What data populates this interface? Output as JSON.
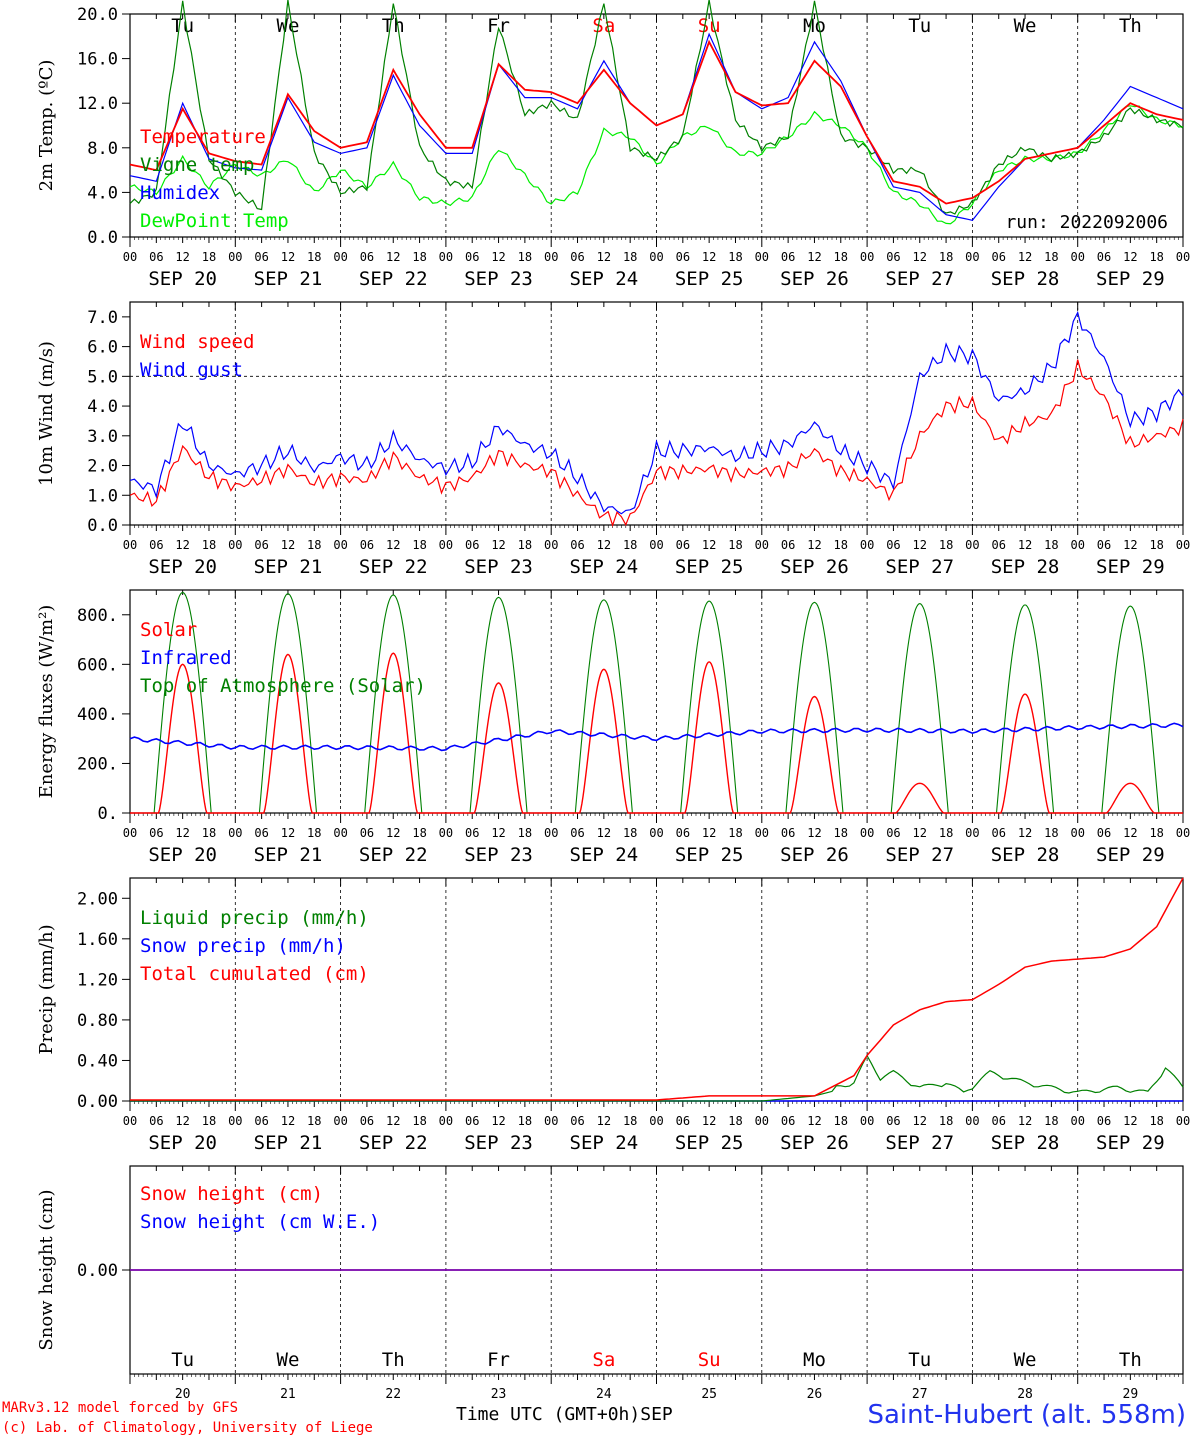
{
  "footer": {
    "credit_line1": "MARv3.12 model forced by GFS",
    "credit_line2": "(c) Lab. of Climatology, University of Liege",
    "time_axis_label": "Time UTC (GMT+0h)",
    "month": "SEP",
    "station": "Saint-Hubert (alt. 558m)"
  },
  "colors": {
    "red": "#ff0000",
    "blue": "#0000ff",
    "green": "#008000",
    "light_green": "#00ee00",
    "purple": "#7700aa"
  },
  "x_axis": {
    "hour_ticks": [
      "00",
      "06",
      "12",
      "18"
    ],
    "end_tick": "00",
    "dates": [
      "SEP 20",
      "SEP 21",
      "SEP 22",
      "SEP 23",
      "SEP 24",
      "SEP 25",
      "SEP 26",
      "SEP 27",
      "SEP 28",
      "SEP 29"
    ],
    "weekdays": [
      "Tu",
      "We",
      "Th",
      "Fr",
      "Sa",
      "Su",
      "Mo",
      "Tu",
      "We",
      "Th"
    ],
    "weekday_colors": [
      "#000",
      "#000",
      "#000",
      "#000",
      "#ff0000",
      "#ff0000",
      "#000",
      "#000",
      "#000",
      "#000"
    ],
    "day_numbers": [
      "20",
      "21",
      "22",
      "23",
      "24",
      "25",
      "26",
      "27",
      "28",
      "29"
    ]
  },
  "chart_data": [
    {
      "type": "line",
      "ylabel": "2m Temp. (ºC)",
      "ylim": [
        0,
        20
      ],
      "yticks": [
        "0.0",
        "4.0",
        "8.0",
        "12.0",
        "16.0",
        "20.0"
      ],
      "annotation": "run: 2022092006",
      "x_unit": "hours since 2022-09-20 00 UTC",
      "series": [
        {
          "name": "Temperature",
          "color": "#ff0000",
          "x": [
            0,
            6,
            12,
            18,
            24,
            30,
            36,
            42,
            48,
            54,
            60,
            66,
            72,
            78,
            84,
            90,
            96,
            102,
            108,
            114,
            120,
            126,
            132,
            138,
            144,
            150,
            156,
            162,
            168,
            174,
            180,
            186,
            192,
            198,
            204,
            210,
            216,
            222,
            228,
            234,
            240
          ],
          "y": [
            6.5,
            6.0,
            11.5,
            7.5,
            6.8,
            6.5,
            12.8,
            9.5,
            8.0,
            8.5,
            15.0,
            11.0,
            8.0,
            8.0,
            15.5,
            13.2,
            13.0,
            12.0,
            15.0,
            12.0,
            10.0,
            11.0,
            17.5,
            13.0,
            11.8,
            12.0,
            15.8,
            13.5,
            9.0,
            5.0,
            4.5,
            3.0,
            3.5,
            5.0,
            7.0,
            7.5,
            8.0,
            10.0,
            12.0,
            11.0,
            10.5
          ]
        },
        {
          "name": "Vigne temp",
          "color": "#008000",
          "x": [
            0,
            6,
            12,
            18,
            24,
            30,
            36,
            42,
            48,
            54,
            60,
            66,
            72,
            78,
            84,
            90,
            96,
            102,
            108,
            114,
            120,
            126,
            132,
            138,
            144,
            150,
            156,
            162,
            168,
            174,
            180,
            186,
            192,
            198,
            204,
            210,
            216,
            222,
            228,
            234,
            240
          ],
          "y": [
            3.0,
            4.0,
            21.0,
            7.0,
            4.0,
            2.5,
            21.0,
            7.5,
            4.0,
            4.5,
            21.0,
            8.0,
            5.0,
            4.5,
            19.0,
            11.0,
            12.0,
            10.5,
            21.0,
            8.0,
            7.0,
            9.0,
            21.0,
            10.5,
            8.0,
            9.0,
            21.0,
            9.0,
            8.0,
            6.0,
            6.0,
            2.0,
            3.0,
            6.5,
            8.0,
            7.0,
            7.5,
            9.0,
            11.5,
            10.5,
            10.0
          ]
        },
        {
          "name": "Humidex",
          "color": "#0000ff",
          "x": [
            0,
            6,
            12,
            18,
            24,
            30,
            36,
            42,
            48,
            54,
            60,
            66,
            72,
            78,
            84,
            90,
            96,
            102,
            108,
            114,
            120,
            126,
            132,
            138,
            144,
            150,
            156,
            162,
            168,
            174,
            180,
            186,
            192,
            198,
            204,
            210,
            216,
            222,
            228,
            234,
            240
          ],
          "y": [
            5.5,
            5.0,
            12.0,
            7.0,
            6.2,
            6.0,
            12.5,
            8.5,
            7.5,
            8.0,
            14.5,
            10.0,
            7.5,
            7.5,
            15.5,
            12.5,
            12.5,
            11.5,
            15.8,
            12.0,
            10.0,
            11.0,
            18.2,
            13.0,
            11.5,
            12.5,
            17.5,
            14.0,
            9.0,
            4.5,
            4.0,
            2.0,
            1.5,
            4.5,
            7.0,
            7.5,
            8.0,
            10.5,
            13.5,
            12.5,
            11.5
          ]
        },
        {
          "name": "DewPoint Temp",
          "color": "#00ee00",
          "x": [
            0,
            6,
            12,
            18,
            24,
            30,
            36,
            42,
            48,
            54,
            60,
            66,
            72,
            78,
            84,
            90,
            96,
            102,
            108,
            114,
            120,
            126,
            132,
            138,
            144,
            150,
            156,
            162,
            168,
            174,
            180,
            186,
            192,
            198,
            204,
            210,
            216,
            222,
            228,
            234,
            240
          ],
          "y": [
            4.5,
            4.0,
            7.0,
            4.5,
            6.5,
            5.5,
            7.0,
            4.0,
            6.0,
            4.5,
            6.5,
            3.5,
            3.0,
            3.5,
            8.0,
            5.5,
            3.0,
            4.0,
            9.5,
            9.0,
            6.5,
            9.0,
            10.0,
            7.5,
            7.5,
            9.0,
            11.0,
            10.0,
            8.0,
            4.0,
            3.0,
            1.0,
            3.0,
            6.0,
            7.0,
            7.0,
            7.5,
            9.5,
            12.0,
            10.5,
            10.0
          ]
        }
      ]
    },
    {
      "type": "line",
      "ylabel": "10m Wind (m/s)",
      "ylim": [
        0,
        7.5
      ],
      "yticks": [
        "0.0",
        "1.0",
        "2.0",
        "3.0",
        "4.0",
        "5.0",
        "6.0",
        "7.0"
      ],
      "reference_line": 5.0,
      "x_unit": "hours since 2022-09-20 00 UTC",
      "series": [
        {
          "name": "Wind speed",
          "color": "#ff0000",
          "x": [
            0,
            6,
            12,
            18,
            24,
            30,
            36,
            42,
            48,
            54,
            60,
            66,
            72,
            78,
            84,
            90,
            96,
            102,
            108,
            114,
            120,
            126,
            132,
            138,
            144,
            150,
            156,
            162,
            168,
            174,
            180,
            186,
            192,
            198,
            204,
            210,
            216,
            222,
            228,
            234,
            240
          ],
          "y": [
            1.0,
            0.8,
            2.6,
            1.6,
            1.3,
            1.5,
            1.9,
            1.4,
            1.6,
            1.5,
            2.3,
            1.6,
            1.3,
            1.6,
            2.4,
            2.0,
            1.8,
            1.0,
            0.3,
            0.2,
            1.8,
            1.8,
            1.9,
            1.7,
            1.8,
            1.9,
            2.5,
            1.8,
            1.5,
            1.0,
            3.0,
            4.0,
            4.1,
            2.8,
            3.4,
            3.7,
            5.3,
            4.3,
            2.7,
            3.0,
            3.3
          ]
        },
        {
          "name": "Wind gust",
          "color": "#0000ff",
          "x": [
            0,
            6,
            12,
            18,
            24,
            30,
            36,
            42,
            48,
            54,
            60,
            66,
            72,
            78,
            84,
            90,
            96,
            102,
            108,
            114,
            120,
            126,
            132,
            138,
            144,
            150,
            156,
            162,
            168,
            174,
            180,
            186,
            192,
            198,
            204,
            210,
            216,
            222,
            228,
            234,
            240
          ],
          "y": [
            1.5,
            1.2,
            3.5,
            2.0,
            1.7,
            2.0,
            2.5,
            1.9,
            2.3,
            2.0,
            2.9,
            2.2,
            1.9,
            2.1,
            3.3,
            2.7,
            2.4,
            1.6,
            0.6,
            0.4,
            2.5,
            2.5,
            2.6,
            2.3,
            2.5,
            2.7,
            3.4,
            2.5,
            2.0,
            1.4,
            5.0,
            5.8,
            5.7,
            4.2,
            4.5,
            5.3,
            7.0,
            5.6,
            3.5,
            3.8,
            4.5
          ]
        }
      ]
    },
    {
      "type": "line",
      "ylabel": "Energy fluxes (W/m²)",
      "ylim": [
        0,
        900
      ],
      "yticks": [
        "0.",
        "200.",
        "400.",
        "600.",
        "800."
      ],
      "x_unit": "hours since 2022-09-20 00 UTC",
      "toa_peaks": [
        890,
        885,
        880,
        870,
        860,
        855,
        850,
        845,
        840,
        835
      ],
      "solar_peaks": [
        600,
        640,
        645,
        525,
        580,
        610,
        470,
        120,
        480,
        120
      ],
      "infrared": {
        "x": [
          0,
          24,
          48,
          72,
          96,
          120,
          144,
          168,
          192,
          216,
          240
        ],
        "y": [
          300,
          265,
          265,
          260,
          330,
          300,
          330,
          335,
          330,
          345,
          355
        ]
      },
      "series": [
        {
          "name": "Solar",
          "color": "#ff0000"
        },
        {
          "name": "Infrared",
          "color": "#0000ff"
        },
        {
          "name": "Top of Atmosphere (Solar)",
          "color": "#008000"
        }
      ]
    },
    {
      "type": "line",
      "ylabel": "Precip (mm/h)",
      "ylim": [
        0,
        2.2
      ],
      "yticks": [
        "0.00",
        "0.40",
        "0.80",
        "1.20",
        "1.60",
        "2.00"
      ],
      "x_unit": "hours since 2022-09-20 00 UTC",
      "series": [
        {
          "name": "Liquid precip (mm/h)",
          "color": "#008000",
          "x": [
            0,
            132,
            144,
            156,
            165,
            168,
            171,
            174,
            180,
            186,
            190,
            196,
            204,
            210,
            216,
            225,
            232,
            236,
            240
          ],
          "y": [
            0,
            0,
            0,
            0.05,
            0.15,
            0.4,
            0.2,
            0.25,
            0.1,
            0.15,
            0.05,
            0.25,
            0.15,
            0.1,
            0.05,
            0.1,
            0.05,
            0.3,
            0.1
          ]
        },
        {
          "name": "Snow precip (mm/h)",
          "color": "#0000ff",
          "x": [
            0,
            240
          ],
          "y": [
            0,
            0
          ]
        },
        {
          "name": "Total cumulated (cm)",
          "color": "#ff0000",
          "x": [
            0,
            120,
            132,
            156,
            165,
            168,
            174,
            180,
            186,
            192,
            198,
            204,
            210,
            216,
            222,
            228,
            234,
            240
          ],
          "y": [
            0.01,
            0.01,
            0.05,
            0.05,
            0.25,
            0.45,
            0.75,
            0.9,
            0.98,
            1.0,
            1.15,
            1.32,
            1.38,
            1.4,
            1.42,
            1.5,
            1.72,
            2.2
          ]
        }
      ]
    },
    {
      "type": "line",
      "ylabel": "Snow height (cm)",
      "yticks": [
        "0.00"
      ],
      "series": [
        {
          "name": "Snow height (cm)",
          "color": "#ff0000",
          "x": [
            0,
            240
          ],
          "y": [
            0,
            0
          ]
        },
        {
          "name": "Snow height (cm W.E.)",
          "color": "#0000ff",
          "x": [
            0,
            240
          ],
          "y": [
            0,
            0
          ]
        }
      ]
    }
  ]
}
